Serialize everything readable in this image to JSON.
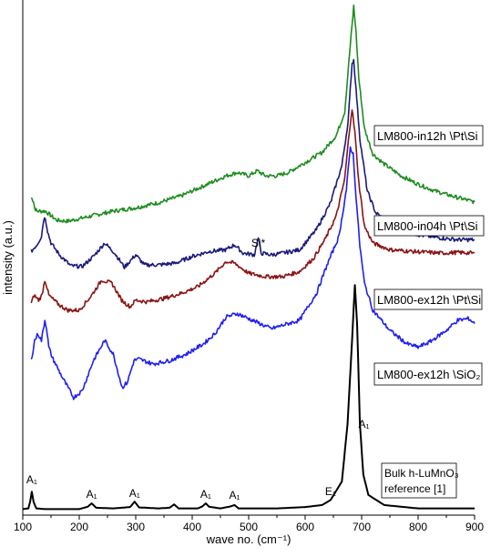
{
  "chart_data": {
    "type": "line",
    "xlabel": "wave no. (cm⁻¹)",
    "ylabel": "intensity (a.u.)",
    "xlim": [
      100,
      900
    ],
    "x_ticks": [
      100,
      200,
      300,
      400,
      500,
      600,
      700,
      800,
      900
    ],
    "y_ticks_shown": false,
    "grid": false,
    "series": [
      {
        "name": "LM800-in12h \\Pt\\Si",
        "color": "#1e8c1e",
        "points": [
          [
            115,
            0.425
          ],
          [
            119,
            0.415
          ],
          [
            121,
            0.395
          ],
          [
            125,
            0.385
          ],
          [
            140,
            0.385
          ],
          [
            160,
            0.358
          ],
          [
            180,
            0.355
          ],
          [
            220,
            0.37
          ],
          [
            260,
            0.385
          ],
          [
            300,
            0.395
          ],
          [
            340,
            0.41
          ],
          [
            380,
            0.43
          ],
          [
            420,
            0.46
          ],
          [
            460,
            0.49
          ],
          [
            480,
            0.5
          ],
          [
            500,
            0.49
          ],
          [
            515,
            0.505
          ],
          [
            530,
            0.49
          ],
          [
            550,
            0.49
          ],
          [
            570,
            0.5
          ],
          [
            600,
            0.53
          ],
          [
            630,
            0.56
          ],
          [
            655,
            0.61
          ],
          [
            670,
            0.68
          ],
          [
            680,
            0.88
          ],
          [
            686,
            0.995
          ],
          [
            690,
            0.92
          ],
          [
            695,
            0.78
          ],
          [
            705,
            0.63
          ],
          [
            720,
            0.555
          ],
          [
            740,
            0.525
          ],
          [
            770,
            0.49
          ],
          [
            800,
            0.465
          ],
          [
            830,
            0.445
          ],
          [
            860,
            0.43
          ],
          [
            900,
            0.412
          ]
        ]
      },
      {
        "name": "LM800-in04h \\Pt\\Si",
        "color": "#1a1a7a",
        "points": [
          [
            115,
            0.265
          ],
          [
            125,
            0.285
          ],
          [
            133,
            0.31
          ],
          [
            137,
            0.36
          ],
          [
            140,
            0.365
          ],
          [
            144,
            0.325
          ],
          [
            150,
            0.29
          ],
          [
            165,
            0.255
          ],
          [
            185,
            0.222
          ],
          [
            205,
            0.22
          ],
          [
            225,
            0.25
          ],
          [
            245,
            0.29
          ],
          [
            262,
            0.262
          ],
          [
            280,
            0.218
          ],
          [
            292,
            0.24
          ],
          [
            300,
            0.255
          ],
          [
            315,
            0.225
          ],
          [
            340,
            0.225
          ],
          [
            370,
            0.23
          ],
          [
            400,
            0.25
          ],
          [
            430,
            0.265
          ],
          [
            460,
            0.27
          ],
          [
            475,
            0.285
          ],
          [
            490,
            0.26
          ],
          [
            510,
            0.255
          ],
          [
            517,
            0.305
          ],
          [
            522,
            0.26
          ],
          [
            540,
            0.255
          ],
          [
            560,
            0.26
          ],
          [
            590,
            0.27
          ],
          [
            620,
            0.33
          ],
          [
            645,
            0.41
          ],
          [
            665,
            0.52
          ],
          [
            676,
            0.65
          ],
          [
            683,
            0.825
          ],
          [
            686,
            0.835
          ],
          [
            690,
            0.75
          ],
          [
            697,
            0.6
          ],
          [
            710,
            0.445
          ],
          [
            725,
            0.38
          ],
          [
            760,
            0.335
          ],
          [
            800,
            0.315
          ],
          [
            840,
            0.305
          ],
          [
            870,
            0.3
          ],
          [
            900,
            0.3
          ]
        ]
      },
      {
        "name": "LM800-ex12h \\Pt\\Si",
        "color": "#8a1414",
        "points": [
          [
            115,
            0.11
          ],
          [
            120,
            0.135
          ],
          [
            128,
            0.12
          ],
          [
            134,
            0.135
          ],
          [
            139,
            0.18
          ],
          [
            142,
            0.165
          ],
          [
            146,
            0.135
          ],
          [
            152,
            0.125
          ],
          [
            165,
            0.105
          ],
          [
            180,
            0.09
          ],
          [
            200,
            0.09
          ],
          [
            220,
            0.13
          ],
          [
            240,
            0.18
          ],
          [
            258,
            0.17
          ],
          [
            275,
            0.12
          ],
          [
            290,
            0.1
          ],
          [
            300,
            0.12
          ],
          [
            320,
            0.115
          ],
          [
            350,
            0.125
          ],
          [
            380,
            0.14
          ],
          [
            410,
            0.16
          ],
          [
            440,
            0.2
          ],
          [
            460,
            0.235
          ],
          [
            475,
            0.23
          ],
          [
            500,
            0.2
          ],
          [
            530,
            0.19
          ],
          [
            560,
            0.19
          ],
          [
            590,
            0.205
          ],
          [
            615,
            0.245
          ],
          [
            635,
            0.3
          ],
          [
            655,
            0.37
          ],
          [
            670,
            0.48
          ],
          [
            678,
            0.62
          ],
          [
            683,
            0.69
          ],
          [
            688,
            0.62
          ],
          [
            695,
            0.47
          ],
          [
            705,
            0.34
          ],
          [
            720,
            0.29
          ],
          [
            750,
            0.27
          ],
          [
            790,
            0.265
          ],
          [
            840,
            0.26
          ],
          [
            870,
            0.262
          ],
          [
            900,
            0.26
          ]
        ]
      },
      {
        "name": "LM800-ex12h \\SiO₂",
        "color": "#1f1ff0",
        "points": [
          [
            115,
            -0.06
          ],
          [
            121,
            0.0
          ],
          [
            127,
            0.02
          ],
          [
            133,
            0.0
          ],
          [
            139,
            0.06
          ],
          [
            142,
            0.04
          ],
          [
            146,
            -0.02
          ],
          [
            152,
            -0.05
          ],
          [
            170,
            -0.11
          ],
          [
            190,
            -0.17
          ],
          [
            205,
            -0.15
          ],
          [
            225,
            -0.06
          ],
          [
            245,
            0.0
          ],
          [
            260,
            -0.04
          ],
          [
            276,
            -0.14
          ],
          [
            285,
            -0.125
          ],
          [
            297,
            -0.06
          ],
          [
            305,
            -0.055
          ],
          [
            330,
            -0.07
          ],
          [
            360,
            -0.06
          ],
          [
            390,
            -0.04
          ],
          [
            420,
            -0.01
          ],
          [
            440,
            0.02
          ],
          [
            460,
            0.07
          ],
          [
            480,
            0.08
          ],
          [
            500,
            0.065
          ],
          [
            520,
            0.05
          ],
          [
            540,
            0.035
          ],
          [
            560,
            0.045
          ],
          [
            590,
            0.06
          ],
          [
            620,
            0.14
          ],
          [
            640,
            0.23
          ],
          [
            660,
            0.31
          ],
          [
            673,
            0.45
          ],
          [
            680,
            0.575
          ],
          [
            685,
            0.555
          ],
          [
            690,
            0.43
          ],
          [
            697,
            0.28
          ],
          [
            705,
            0.17
          ],
          [
            720,
            0.09
          ],
          [
            750,
            0.03
          ],
          [
            780,
            -0.01
          ],
          [
            800,
            -0.02
          ],
          [
            820,
            -0.005
          ],
          [
            850,
            0.03
          ],
          [
            870,
            0.06
          ],
          [
            890,
            0.065
          ],
          [
            900,
            0.05
          ]
        ]
      },
      {
        "name": "Bulk h-LuMnO₃ reference [1]",
        "color": "#000000",
        "points": [
          [
            100,
            -0.502
          ],
          [
            110,
            -0.5
          ],
          [
            113,
            -0.48
          ],
          [
            116,
            -0.45
          ],
          [
            119,
            -0.48
          ],
          [
            124,
            -0.5
          ],
          [
            140,
            -0.502
          ],
          [
            200,
            -0.502
          ],
          [
            215,
            -0.495
          ],
          [
            222,
            -0.485
          ],
          [
            230,
            -0.498
          ],
          [
            260,
            -0.5
          ],
          [
            290,
            -0.496
          ],
          [
            298,
            -0.48
          ],
          [
            306,
            -0.497
          ],
          [
            340,
            -0.5
          ],
          [
            360,
            -0.498
          ],
          [
            368,
            -0.488
          ],
          [
            376,
            -0.5
          ],
          [
            410,
            -0.5
          ],
          [
            418,
            -0.494
          ],
          [
            424,
            -0.485
          ],
          [
            430,
            -0.495
          ],
          [
            450,
            -0.5
          ],
          [
            468,
            -0.494
          ],
          [
            475,
            -0.49
          ],
          [
            482,
            -0.5
          ],
          [
            550,
            -0.5
          ],
          [
            600,
            -0.496
          ],
          [
            630,
            -0.49
          ],
          [
            645,
            -0.475
          ],
          [
            665,
            -0.42
          ],
          [
            675,
            -0.25
          ],
          [
            683,
            0.0
          ],
          [
            688,
            0.165
          ],
          [
            692,
            0.05
          ],
          [
            697,
            -0.25
          ],
          [
            703,
            -0.4
          ],
          [
            712,
            -0.46
          ],
          [
            740,
            -0.49
          ],
          [
            800,
            -0.5
          ],
          [
            900,
            -0.5
          ]
        ]
      }
    ],
    "annotations": [
      {
        "text": "Si*",
        "x": 517
      },
      {
        "text": "A₁",
        "x": 116
      },
      {
        "text": "A₁",
        "x": 222
      },
      {
        "text": "A₁",
        "x": 298
      },
      {
        "text": "A₁",
        "x": 424
      },
      {
        "text": "A₁",
        "x": 475
      },
      {
        "text": "E₁",
        "x": 645
      },
      {
        "text": "A₁",
        "x": 688
      }
    ]
  }
}
